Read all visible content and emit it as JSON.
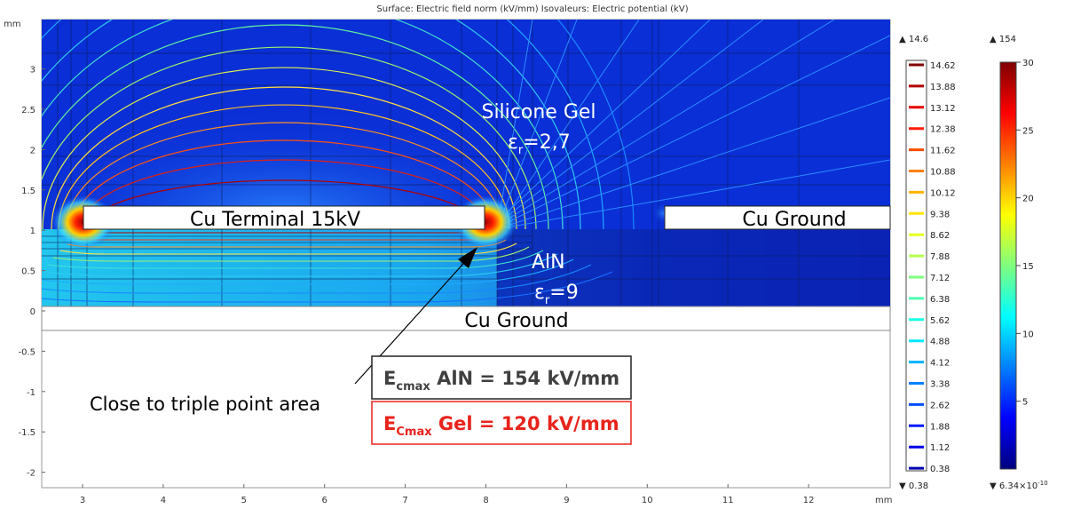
{
  "title": "Surface: Electric field norm (kV/mm)  Isovaleurs: Electric potential (kV)",
  "axes": {
    "y_unit": "mm",
    "x_unit": "mm",
    "x_ticks": [
      "3",
      "4",
      "5",
      "6",
      "7",
      "8",
      "9",
      "10",
      "11",
      "12"
    ],
    "y_ticks": [
      "3",
      "2.5",
      "2",
      "1.5",
      "1",
      "0.5",
      "0",
      "-0.5",
      "-1",
      "-1.5",
      "-2"
    ]
  },
  "labels": {
    "silicone_gel": "Silicone Gel",
    "gel_eps_symbol": "ε",
    "gel_eps_sub": "r",
    "gel_eps_value": "=2,7",
    "aln": "AlN",
    "aln_eps_symbol": "ε",
    "aln_eps_sub": "r",
    "aln_eps_value": "=9",
    "cu_terminal": "Cu Terminal 15kV",
    "cu_ground_right": "Cu Ground",
    "cu_ground_bottom": "Cu Ground",
    "triple_point": "Close to triple point area"
  },
  "boxes": {
    "aln_e": "E",
    "aln_sub": "cmax",
    "aln_rest": " AlN = 154 kV/mm",
    "gel_e": "E",
    "gel_sub": "Cmax",
    "gel_rest": " Gel = 120 kV/mm"
  },
  "legend_potential": {
    "max": "▲ 14.6",
    "min": "▼ 0.38",
    "values": [
      "14.62",
      "13.88",
      "13.12",
      "12.38",
      "11.62",
      "10.88",
      "10.12",
      "9.38",
      "8.62",
      "7.88",
      "7.12",
      "6.38",
      "5.62",
      "4.88",
      "4.12",
      "3.38",
      "2.62",
      "1.88",
      "1.12",
      "0.38"
    ]
  },
  "legend_field": {
    "max": "▲ 154",
    "min_prefix": "▼ 6.34×10",
    "min_exp": "-10",
    "ticks": [
      "30",
      "25",
      "20",
      "15",
      "10",
      "5"
    ]
  },
  "colors": {
    "gel_bg": "#0a2fd6",
    "aln_bg": "#0a23b4",
    "box_dark_border": "#333333",
    "box_red": "#e8231c"
  }
}
